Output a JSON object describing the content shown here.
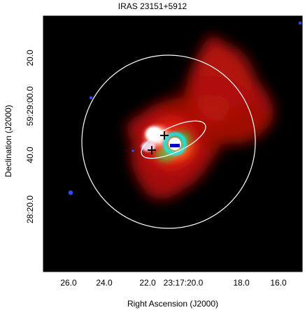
{
  "title": "IRAS 23151+5912",
  "xlabel": "Right Ascension (J2000)",
  "ylabel": "Declination (J2000)",
  "x_ticks": [
    "26.0",
    "24.0",
    "22.0",
    "23:17:20.0",
    "18.0",
    "16.0"
  ],
  "y_ticks": [
    "20.0",
    "59:29:00.0",
    "40.0",
    "28:20.0"
  ],
  "colors": {
    "background": "#000000",
    "emission_red": "#ff2a1a",
    "emission_green": "#3fd54a",
    "emission_cyan": "#18e6e6",
    "contours": "#ffffff",
    "star_blue": "#2a4cff"
  }
}
